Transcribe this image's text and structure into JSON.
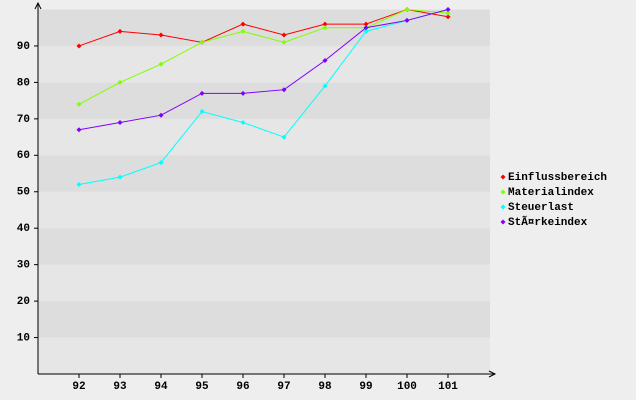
{
  "chart_data": {
    "type": "line",
    "categories": [
      "92",
      "93",
      "94",
      "95",
      "96",
      "97",
      "98",
      "99",
      "100",
      "101"
    ],
    "series": [
      {
        "name": "Einflussbereich",
        "color": "#ff0000",
        "values": [
          90,
          94,
          93,
          91,
          96,
          93,
          96,
          96,
          100,
          98
        ]
      },
      {
        "name": "Materialindex",
        "color": "#80ff00",
        "values": [
          74,
          80,
          85,
          91,
          94,
          91,
          95,
          95,
          100,
          99
        ]
      },
      {
        "name": "Steuerlast",
        "color": "#00ffff",
        "values": [
          52,
          54,
          58,
          72,
          69,
          65,
          79,
          94,
          97,
          100
        ]
      },
      {
        "name": "StÃ¤rkeindex",
        "color": "#8000ff",
        "values": [
          67,
          69,
          71,
          77,
          77,
          78,
          86,
          95,
          97,
          100
        ]
      }
    ],
    "ylim": [
      0,
      100
    ],
    "yticks": [
      10,
      20,
      30,
      40,
      50,
      60,
      70,
      80,
      90
    ],
    "legend": "right"
  }
}
